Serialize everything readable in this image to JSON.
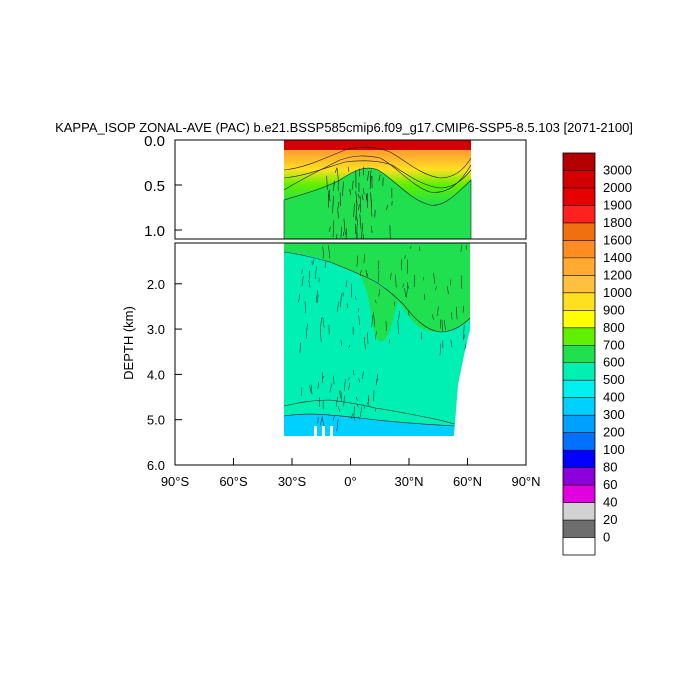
{
  "chart_data": {
    "type": "heatmap",
    "title": "KAPPA_ISOP ZONAL-AVE (PAC) b.e21.BSSP585cmip6.f09_g17.CMIP6-SSP5-8.5.103 [2071-2100]",
    "xlabel": "",
    "ylabel": "DEPTH (km)",
    "xlim": [
      -90,
      90
    ],
    "ylim_upper_panel": [
      0.0,
      1.1
    ],
    "ylim_lower_panel": [
      1.1,
      6.0
    ],
    "x_ticks": [
      {
        "value": -90,
        "label": "90°S"
      },
      {
        "value": -60,
        "label": "60°S"
      },
      {
        "value": -30,
        "label": "30°S"
      },
      {
        "value": 0,
        "label": "0°"
      },
      {
        "value": 30,
        "label": "30°N"
      },
      {
        "value": 60,
        "label": "60°N"
      },
      {
        "value": 90,
        "label": "90°N"
      }
    ],
    "y_ticks_upper": [
      {
        "value": 0.0,
        "label": "0.0"
      },
      {
        "value": 0.5,
        "label": "0.5"
      },
      {
        "value": 1.0,
        "label": "1.0"
      }
    ],
    "y_ticks_lower": [
      {
        "value": 2.0,
        "label": "2.0"
      },
      {
        "value": 3.0,
        "label": "3.0"
      },
      {
        "value": 4.0,
        "label": "4.0"
      },
      {
        "value": 5.0,
        "label": "5.0"
      },
      {
        "value": 6.0,
        "label": "6.0"
      }
    ],
    "colorbar": {
      "levels": [
        "3000",
        "2000",
        "1900",
        "1800",
        "1600",
        "1400",
        "1200",
        "1000",
        "900",
        "800",
        "700",
        "600",
        "500",
        "400",
        "300",
        "200",
        "100",
        "80",
        "60",
        "40",
        "20",
        "0"
      ],
      "colors": [
        "#b40000",
        "#d20000",
        "#e60000",
        "#ff2020",
        "#f07010",
        "#ff8c20",
        "#ffaa30",
        "#ffc040",
        "#ffe020",
        "#ffff00",
        "#60f000",
        "#20e050",
        "#00f0b4",
        "#00f0f0",
        "#00d0ff",
        "#00a0ff",
        "#0070ff",
        "#0000ff",
        "#8c00dc",
        "#e000e0",
        "#d2d2d2",
        "#6e6e6e",
        "#ffffff"
      ]
    },
    "data_extent": {
      "lat_min": -35,
      "lat_max": 62,
      "bottom_depth_km": 5.4,
      "bottom_depth_north_km": 4.4
    },
    "colors": {
      "frame": "#000000",
      "contour": "#1a1a1a"
    }
  }
}
